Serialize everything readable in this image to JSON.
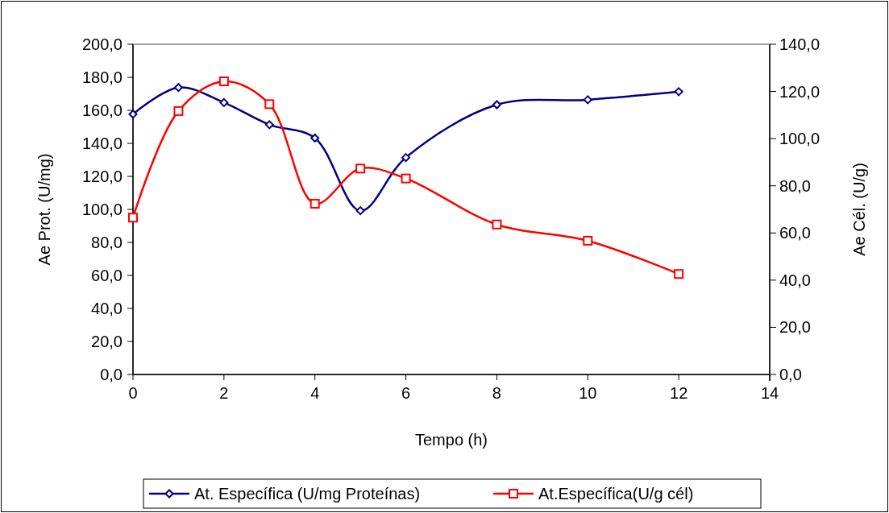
{
  "chart_data": {
    "type": "line",
    "xlabel": "Tempo (h)",
    "ylabel": "Ae Prot. (U/mg)",
    "y2label": "Ae Cél. (U/g)",
    "x": [
      0,
      1,
      2,
      3,
      4,
      5,
      6,
      8,
      10,
      12
    ],
    "xlim": [
      0,
      14
    ],
    "xticks": [
      0,
      2,
      4,
      6,
      8,
      10,
      12,
      14
    ],
    "ylim": [
      0,
      200
    ],
    "yticks": [
      {
        "value": 0,
        "label": "0,0"
      },
      {
        "value": 20,
        "label": "20,0"
      },
      {
        "value": 40,
        "label": "40,0"
      },
      {
        "value": 60,
        "label": "60,0"
      },
      {
        "value": 80,
        "label": "80,0"
      },
      {
        "value": 100,
        "label": "100,0"
      },
      {
        "value": 120,
        "label": "120,0"
      },
      {
        "value": 140,
        "label": "140,0"
      },
      {
        "value": 160,
        "label": "160,0"
      },
      {
        "value": 180,
        "label": "180,0"
      },
      {
        "value": 200,
        "label": "200,0"
      }
    ],
    "y2lim": [
      0,
      140
    ],
    "y2ticks": [
      {
        "value": 0,
        "label": "0,0"
      },
      {
        "value": 20,
        "label": "20,0"
      },
      {
        "value": 40,
        "label": "40,0"
      },
      {
        "value": 60,
        "label": "60,0"
      },
      {
        "value": 80,
        "label": "80,0"
      },
      {
        "value": 100,
        "label": "100,0"
      },
      {
        "value": 120,
        "label": "120,0"
      },
      {
        "value": 140,
        "label": "140,0"
      }
    ],
    "series": [
      {
        "name": "At. Específica (U/mg Proteínas)",
        "color": "#000080",
        "marker": "diamond",
        "values": [
          157.7,
          173.8,
          164.7,
          151.3,
          143.2,
          99.2,
          131.4,
          163.4,
          166.4,
          171.3
        ]
      },
      {
        "name": "At.Específica(U/g cél)",
        "color": "#ff0000",
        "marker": "square",
        "axis": "y2",
        "values": [
          66.5,
          111.7,
          124.3,
          114.6,
          72.4,
          87.3,
          83.1,
          63.6,
          56.7,
          42.6
        ]
      }
    ],
    "grid": false,
    "legend": "bottom"
  }
}
